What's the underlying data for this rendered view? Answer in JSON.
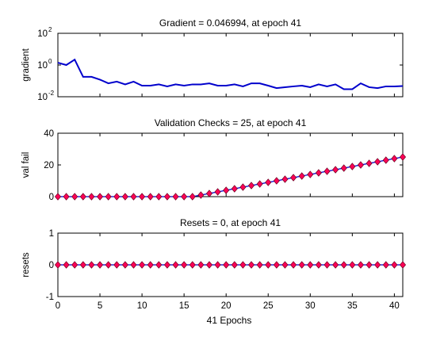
{
  "figure": {
    "xlabel": "41 Epochs",
    "line_color": "#0000cc",
    "marker_fill": "#ff0055",
    "marker_edge": "#660022"
  },
  "chart_data": [
    {
      "type": "line",
      "title": "Gradient = 0.046994, at epoch 41",
      "ylabel": "gradient",
      "yscale": "log",
      "xlim": [
        0,
        41
      ],
      "ylim": [
        0.01,
        100
      ],
      "xticks": [],
      "yticks": [
        {
          "base": "10",
          "exp": "-2"
        },
        {
          "base": "10",
          "exp": "0"
        },
        {
          "base": "10",
          "exp": "2"
        }
      ],
      "grid": false,
      "series": [
        {
          "x": [
            0,
            1,
            2,
            3,
            4,
            5,
            6,
            7,
            8,
            9,
            10,
            11,
            12,
            13,
            14,
            15,
            16,
            17,
            18,
            19,
            20,
            21,
            22,
            23,
            24,
            25,
            26,
            27,
            28,
            29,
            30,
            31,
            32,
            33,
            34,
            35,
            36,
            37,
            38,
            39,
            40,
            41
          ],
          "values": [
            1.4,
            1.0,
            2.2,
            0.18,
            0.18,
            0.12,
            0.07,
            0.09,
            0.06,
            0.09,
            0.05,
            0.05,
            0.06,
            0.045,
            0.06,
            0.05,
            0.06,
            0.06,
            0.07,
            0.05,
            0.05,
            0.06,
            0.045,
            0.07,
            0.07,
            0.05,
            0.035,
            0.04,
            0.045,
            0.05,
            0.04,
            0.06,
            0.045,
            0.06,
            0.03,
            0.03,
            0.07,
            0.04,
            0.035,
            0.045,
            0.045,
            0.047
          ]
        }
      ]
    },
    {
      "type": "line",
      "title": "Validation Checks = 25, at epoch 41",
      "ylabel": "val fail",
      "xlim": [
        0,
        41
      ],
      "ylim": [
        0,
        40
      ],
      "xticks": [],
      "yticks": [
        0,
        20,
        40
      ],
      "grid": false,
      "markers": "diamond",
      "series": [
        {
          "x": [
            0,
            1,
            2,
            3,
            4,
            5,
            6,
            7,
            8,
            9,
            10,
            11,
            12,
            13,
            14,
            15,
            16,
            17,
            18,
            19,
            20,
            21,
            22,
            23,
            24,
            25,
            26,
            27,
            28,
            29,
            30,
            31,
            32,
            33,
            34,
            35,
            36,
            37,
            38,
            39,
            40,
            41
          ],
          "values": [
            0,
            0,
            0,
            0,
            0,
            0,
            0,
            0,
            0,
            0,
            0,
            0,
            0,
            0,
            0,
            0,
            0,
            1,
            2,
            3,
            4,
            5,
            6,
            7,
            8,
            9,
            10,
            11,
            12,
            13,
            14,
            15,
            16,
            17,
            18,
            19,
            20,
            21,
            22,
            23,
            24,
            25
          ]
        }
      ]
    },
    {
      "type": "line",
      "title": "Resets = 0, at epoch 41",
      "ylabel": "resets",
      "xlim": [
        0,
        41
      ],
      "ylim": [
        -1,
        1
      ],
      "xticks": [
        0,
        5,
        10,
        15,
        20,
        25,
        30,
        35,
        40
      ],
      "yticks": [
        -1,
        0,
        1
      ],
      "grid": false,
      "markers": "diamond",
      "series": [
        {
          "x": [
            0,
            1,
            2,
            3,
            4,
            5,
            6,
            7,
            8,
            9,
            10,
            11,
            12,
            13,
            14,
            15,
            16,
            17,
            18,
            19,
            20,
            21,
            22,
            23,
            24,
            25,
            26,
            27,
            28,
            29,
            30,
            31,
            32,
            33,
            34,
            35,
            36,
            37,
            38,
            39,
            40,
            41
          ],
          "values": [
            0,
            0,
            0,
            0,
            0,
            0,
            0,
            0,
            0,
            0,
            0,
            0,
            0,
            0,
            0,
            0,
            0,
            0,
            0,
            0,
            0,
            0,
            0,
            0,
            0,
            0,
            0,
            0,
            0,
            0,
            0,
            0,
            0,
            0,
            0,
            0,
            0,
            0,
            0,
            0,
            0,
            0
          ]
        }
      ]
    }
  ]
}
